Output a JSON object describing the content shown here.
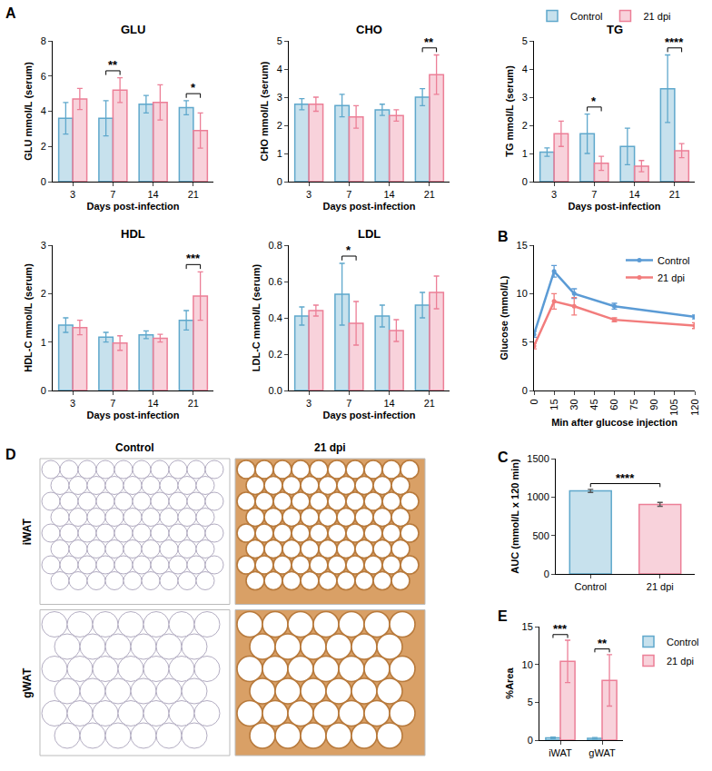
{
  "chart_data": [
    {
      "panel": "A",
      "type": "bar",
      "title": "GLU",
      "x_label": "Days post-infection",
      "y_label": "GLU mmol/L (serum)",
      "categories": [
        "3",
        "7",
        "14",
        "21"
      ],
      "ylim": [
        0,
        8
      ],
      "yticks": [
        0,
        2,
        4,
        6,
        8
      ],
      "series": [
        {
          "name": "Control",
          "color": "#5fa8cc",
          "values": [
            3.6,
            3.6,
            4.4,
            4.2
          ],
          "errors": [
            0.9,
            1.0,
            0.5,
            0.4
          ]
        },
        {
          "name": "21 dpi",
          "color": "#ec7f97",
          "values": [
            4.7,
            5.2,
            4.5,
            2.9
          ],
          "errors": [
            0.6,
            0.7,
            1.0,
            1.0
          ]
        }
      ],
      "annotations": [
        {
          "category": "7",
          "text": "**"
        },
        {
          "category": "21",
          "text": "*"
        }
      ]
    },
    {
      "type": "bar",
      "title": "CHO",
      "x_label": "Days post-infection",
      "y_label": "CHO mmol/L (serum)",
      "categories": [
        "3",
        "7",
        "14",
        "21"
      ],
      "ylim": [
        0,
        5
      ],
      "yticks": [
        0,
        1,
        2,
        3,
        4,
        5
      ],
      "series": [
        {
          "name": "Control",
          "color": "#5fa8cc",
          "values": [
            2.75,
            2.7,
            2.55,
            3.0
          ],
          "errors": [
            0.2,
            0.4,
            0.2,
            0.3
          ]
        },
        {
          "name": "21 dpi",
          "color": "#ec7f97",
          "values": [
            2.75,
            2.3,
            2.35,
            3.8
          ],
          "errors": [
            0.25,
            0.4,
            0.2,
            0.7
          ]
        }
      ],
      "annotations": [
        {
          "category": "21",
          "text": "**"
        }
      ]
    },
    {
      "type": "bar",
      "title": "TG",
      "x_label": "Days post-infection",
      "y_label": "TG mmol/L (serum)",
      "categories": [
        "3",
        "7",
        "14",
        "21"
      ],
      "ylim": [
        0,
        5
      ],
      "yticks": [
        0,
        1,
        2,
        3,
        4,
        5
      ],
      "legend": "top right",
      "series": [
        {
          "name": "Control",
          "color": "#5fa8cc",
          "values": [
            1.05,
            1.7,
            1.25,
            3.3
          ],
          "errors": [
            0.15,
            0.7,
            0.65,
            1.2
          ]
        },
        {
          "name": "21 dpi",
          "color": "#ec7f97",
          "values": [
            1.7,
            0.65,
            0.55,
            1.1
          ],
          "errors": [
            0.45,
            0.25,
            0.2,
            0.25
          ]
        }
      ],
      "annotations": [
        {
          "category": "7",
          "text": "*"
        },
        {
          "category": "21",
          "text": "****"
        }
      ]
    },
    {
      "type": "bar",
      "title": "HDL",
      "x_label": "Days post-infection",
      "y_label": "HDL-C mmol/L (serum)",
      "categories": [
        "3",
        "7",
        "14",
        "21"
      ],
      "ylim": [
        0,
        3
      ],
      "yticks": [
        0,
        1,
        2,
        3
      ],
      "series": [
        {
          "name": "Control",
          "color": "#5fa8cc",
          "values": [
            1.35,
            1.1,
            1.15,
            1.45
          ],
          "errors": [
            0.15,
            0.1,
            0.08,
            0.2
          ]
        },
        {
          "name": "21 dpi",
          "color": "#ec7f97",
          "values": [
            1.3,
            0.98,
            1.08,
            1.95
          ],
          "errors": [
            0.15,
            0.15,
            0.08,
            0.5
          ]
        }
      ],
      "annotations": [
        {
          "category": "21",
          "text": "***"
        }
      ]
    },
    {
      "type": "bar",
      "title": "LDL",
      "x_label": "Days post-infection",
      "y_label": "LDL-C mmol/L (serum)",
      "categories": [
        "3",
        "7",
        "14",
        "21"
      ],
      "ylim": [
        0,
        0.8
      ],
      "yticks": [
        {
          "value": 0,
          "label": "0.0"
        },
        0.2,
        0.4,
        0.6,
        0.8
      ],
      "series": [
        {
          "name": "Control",
          "color": "#5fa8cc",
          "values": [
            0.41,
            0.53,
            0.41,
            0.47
          ],
          "errors": [
            0.05,
            0.17,
            0.06,
            0.07
          ]
        },
        {
          "name": "21 dpi",
          "color": "#ec7f97",
          "values": [
            0.44,
            0.37,
            0.33,
            0.54
          ],
          "errors": [
            0.03,
            0.12,
            0.06,
            0.09
          ]
        }
      ],
      "annotations": [
        {
          "category": "7",
          "text": "*"
        }
      ]
    },
    {
      "panel": "B",
      "type": "line",
      "x_label": "Min after glucose injection",
      "y_label": "Glucose (mmol/L)",
      "x": [
        0,
        15,
        30,
        60,
        120
      ],
      "xlim": [
        0,
        120
      ],
      "xticks": [
        0,
        15,
        30,
        45,
        60,
        75,
        90,
        105,
        120
      ],
      "ylim": [
        0,
        15
      ],
      "yticks": [
        0,
        5,
        10,
        15
      ],
      "legend": "top right",
      "marker": "circle",
      "series": [
        {
          "name": "Control",
          "color": "#5b9bd5",
          "values": [
            5.8,
            12.3,
            10.0,
            8.7,
            7.6
          ],
          "errors": [
            0.3,
            0.6,
            0.5,
            0.3,
            0.2
          ]
        },
        {
          "name": "21 dpi",
          "color": "#f27c7c",
          "values": [
            4.6,
            9.2,
            8.7,
            7.3,
            6.7
          ],
          "errors": [
            0.3,
            0.8,
            0.9,
            0.2,
            0.3
          ]
        }
      ]
    },
    {
      "panel": "C",
      "type": "bar",
      "y_label": "AUC (mmol/L x 120 min)",
      "categories": [
        "Control",
        "21 dpi"
      ],
      "values": [
        1080,
        905
      ],
      "errors": [
        20,
        25
      ],
      "colors": [
        "#5fa8cc",
        "#ec7f97"
      ],
      "ylim": [
        0,
        1500
      ],
      "yticks": [
        0,
        500,
        1000,
        1500
      ],
      "annotations": [
        {
          "from": "Control",
          "to": "21 dpi",
          "text": "****"
        }
      ]
    },
    {
      "panel": "D",
      "type": "image_grid",
      "columns": [
        "Control",
        "21 dpi"
      ],
      "rows": [
        "iWAT",
        "gWAT"
      ]
    },
    {
      "panel": "E",
      "type": "bar",
      "y_label": "%Area",
      "categories": [
        "iWAT",
        "gWAT"
      ],
      "ylim": [
        0,
        15
      ],
      "yticks": [
        0,
        5,
        10,
        15
      ],
      "legend": "right",
      "series": [
        {
          "name": "Control",
          "color": "#5fa8cc",
          "values": [
            0.3,
            0.25
          ],
          "errors": [
            0.1,
            0.1
          ]
        },
        {
          "name": "21 dpi",
          "color": "#ec7f97",
          "values": [
            10.4,
            7.9
          ],
          "errors": [
            2.8,
            3.4
          ]
        }
      ],
      "annotations": [
        {
          "category": "iWAT",
          "text": "***"
        },
        {
          "category": "gWAT",
          "text": "**"
        }
      ]
    }
  ]
}
